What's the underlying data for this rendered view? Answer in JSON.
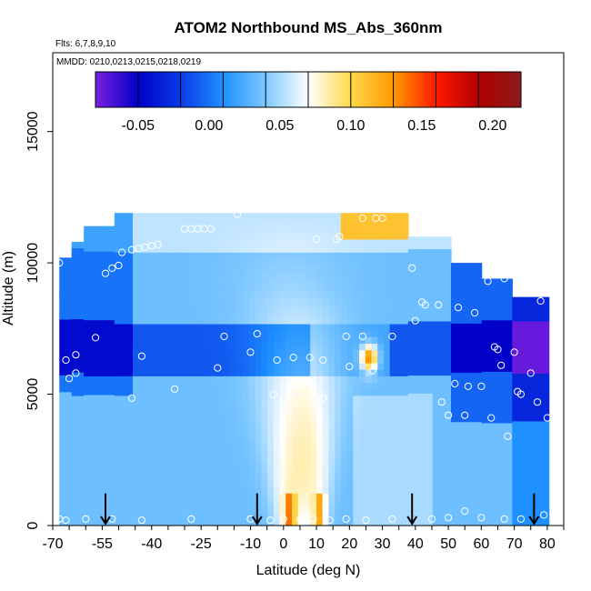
{
  "chart_data": {
    "type": "heatmap",
    "title": "ATOM2 Northbound MS_Abs_360nm",
    "flights_label": "Flts: 6,7,8,9,10",
    "dates_label": "MMDD: 0210,0213,0215,0218,0219",
    "xlabel": "Latitude (deg N)",
    "ylabel": "Altitude (m)",
    "xlim": [
      -70,
      85
    ],
    "ylim": [
      0,
      18000
    ],
    "x_ticks": [
      -70,
      -55,
      -40,
      -25,
      -10,
      0,
      10,
      20,
      30,
      40,
      50,
      60,
      70,
      80
    ],
    "y_ticks": [
      0,
      5000,
      10000,
      15000
    ],
    "colorbar": {
      "range": [
        -0.08,
        0.22
      ],
      "ticks": [
        -0.05,
        0.0,
        0.05,
        0.1,
        0.15,
        0.2
      ],
      "tick_labels": [
        "-0.05",
        "0.00",
        "0.05",
        "0.10",
        "0.15",
        "0.20"
      ],
      "colors": [
        "#7b1fe0",
        "#0000c8",
        "#0a3ae6",
        "#1e90ff",
        "#7ec8ff",
        "#ffffff",
        "#ffd84a",
        "#ff9a00",
        "#ff1a00",
        "#b00000",
        "#8b1a1a"
      ]
    },
    "grid": false,
    "legend": "colorbar top-inside",
    "arrow_latitudes": [
      -54,
      -8,
      39,
      76
    ],
    "sample_points": [
      [
        -68,
        10000
      ],
      [
        -67,
        10600
      ],
      [
        -66,
        6300
      ],
      [
        -65,
        5600
      ],
      [
        -63,
        5800
      ],
      [
        -63,
        6500
      ],
      [
        -57,
        7150
      ],
      [
        -54,
        9600
      ],
      [
        -52,
        9800
      ],
      [
        -50,
        9900
      ],
      [
        -49,
        10400
      ],
      [
        -46,
        10500
      ],
      [
        -44,
        10550
      ],
      [
        -42,
        10600
      ],
      [
        -40,
        10650
      ],
      [
        -38,
        10700
      ],
      [
        -43,
        6450
      ],
      [
        -46,
        4850
      ],
      [
        -33,
        5200
      ],
      [
        -30,
        11300
      ],
      [
        -28,
        11300
      ],
      [
        -26,
        11300
      ],
      [
        -24,
        11300
      ],
      [
        -22,
        11300
      ],
      [
        -20,
        6000
      ],
      [
        -18,
        7200
      ],
      [
        -14,
        11850
      ],
      [
        -10,
        6600
      ],
      [
        -8,
        7300
      ],
      [
        -3,
        5000
      ],
      [
        -2,
        6300
      ],
      [
        3,
        6400
      ],
      [
        3,
        5400
      ],
      [
        8,
        6400
      ],
      [
        8,
        5400
      ],
      [
        10,
        10900
      ],
      [
        12,
        6300
      ],
      [
        12,
        4850
      ],
      [
        16,
        10900
      ],
      [
        17,
        11000
      ],
      [
        19,
        7200
      ],
      [
        20,
        6050
      ],
      [
        24,
        7200
      ],
      [
        24,
        11700
      ],
      [
        27,
        5900
      ],
      [
        28,
        11700
      ],
      [
        30,
        11700
      ],
      [
        33,
        7200
      ],
      [
        39,
        9800
      ],
      [
        40,
        7800
      ],
      [
        42,
        8500
      ],
      [
        43,
        8400
      ],
      [
        47,
        8400
      ],
      [
        48,
        4700
      ],
      [
        50,
        4200
      ],
      [
        52,
        5400
      ],
      [
        53,
        8300
      ],
      [
        55,
        4200
      ],
      [
        56,
        5300
      ],
      [
        58,
        8100
      ],
      [
        60,
        5300
      ],
      [
        62,
        9300
      ],
      [
        63,
        4100
      ],
      [
        64,
        6800
      ],
      [
        65,
        6700
      ],
      [
        66,
        6100
      ],
      [
        67,
        9400
      ],
      [
        68,
        3400
      ],
      [
        70,
        6600
      ],
      [
        71,
        5100
      ],
      [
        72,
        5000
      ],
      [
        75,
        5800
      ],
      [
        77,
        4700
      ],
      [
        78,
        8550
      ],
      [
        80,
        4100
      ],
      [
        -68,
        250
      ],
      [
        -66,
        200
      ],
      [
        -60,
        250
      ],
      [
        -52,
        250
      ],
      [
        -43,
        200
      ],
      [
        -28,
        250
      ],
      [
        -10,
        250
      ],
      [
        -4,
        200
      ],
      [
        0,
        250
      ],
      [
        5,
        250
      ],
      [
        9,
        250
      ],
      [
        14,
        200
      ],
      [
        19,
        250
      ],
      [
        25,
        200
      ],
      [
        33,
        250
      ],
      [
        45,
        250
      ],
      [
        50,
        300
      ],
      [
        55,
        550
      ],
      [
        60,
        300
      ],
      [
        67,
        250
      ],
      [
        72,
        250
      ],
      [
        79,
        400
      ]
    ],
    "series": [
      {
        "name": "",
        "values": []
      }
    ]
  }
}
